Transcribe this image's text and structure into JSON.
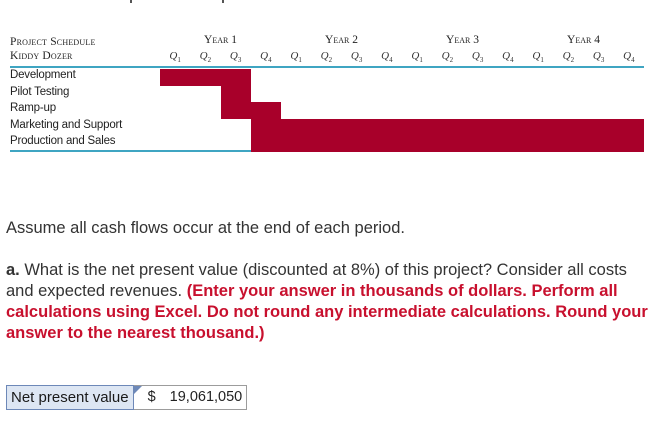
{
  "schedule": {
    "title_line1": "Project Schedule",
    "title_line2": "Kiddy Dozer",
    "years": [
      "Year 1",
      "Year 2",
      "Year 3",
      "Year 4"
    ],
    "quarter_prefix": "Q",
    "rows": [
      {
        "label": "Development",
        "start_quarter": 1,
        "end_quarter": 3
      },
      {
        "label": "Pilot Testing",
        "start_quarter": 3,
        "end_quarter": 3
      },
      {
        "label": "Ramp-up",
        "start_quarter": 3,
        "end_quarter": 4
      },
      {
        "label": "Marketing and Support",
        "start_quarter": 4,
        "end_quarter": 16
      },
      {
        "label": "Production and Sales",
        "start_quarter": 4,
        "end_quarter": 16
      }
    ],
    "bar_color": "#a8002a",
    "rule_color": "#3fa5c2"
  },
  "text": {
    "assumption": "Assume all cash flows occur at the end of each period.",
    "question_label": "a.",
    "question": " What is the net present value (discounted at 8%) of this project? Consider all costs and expected revenues. ",
    "instruction": "(Enter your answer in thousands of dollars. Perform all calculations using Excel. Do not round any intermediate calculations. Round your answer to the nearest thousand.)"
  },
  "answer": {
    "label": "Net present value",
    "currency": "$",
    "value": "19,061,050"
  }
}
